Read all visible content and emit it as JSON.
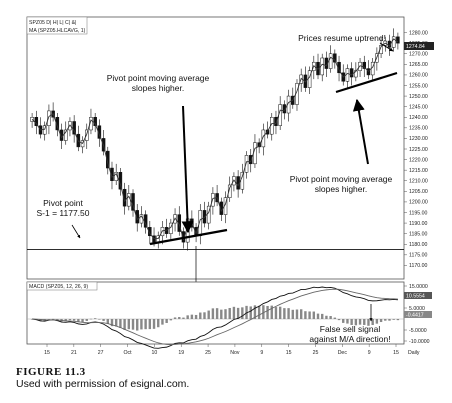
{
  "chart_data": [
    {
      "type": "candlestick",
      "symbol_header": "SPZ05 D| H| L| C| &|",
      "ma_header": "MA (SPZ05.HLCAVG, 1)",
      "ylim": [
        1165,
        1285
      ],
      "y_ticks": [
        "1280.00",
        "1275.00",
        "1270.00",
        "1265.00",
        "1260.00",
        "1255.00",
        "1250.00",
        "1245.00",
        "1240.00",
        "1235.00",
        "1230.00",
        "1225.00",
        "1220.00",
        "1215.00",
        "1210.00",
        "1205.00",
        "1200.00",
        "1195.00",
        "1190.00",
        "1185.00",
        "1180.00",
        "1175.00",
        "1170.00"
      ],
      "last_price_label": "1274.84",
      "pivot_support_level": 1177.5,
      "closes": [
        1240,
        1236,
        1232,
        1236,
        1243,
        1240,
        1234,
        1229,
        1234,
        1238,
        1232,
        1226,
        1229,
        1234,
        1240,
        1236,
        1230,
        1224,
        1216,
        1210,
        1214,
        1206,
        1198,
        1204,
        1196,
        1190,
        1194,
        1188,
        1184,
        1181,
        1184,
        1188,
        1185,
        1190,
        1194,
        1186,
        1181,
        1192,
        1188,
        1184,
        1196,
        1190,
        1198,
        1204,
        1200,
        1194,
        1202,
        1208,
        1212,
        1206,
        1214,
        1222,
        1218,
        1228,
        1226,
        1234,
        1232,
        1240,
        1236,
        1246,
        1242,
        1250,
        1246,
        1256,
        1260,
        1254,
        1262,
        1266,
        1260,
        1268,
        1263,
        1270,
        1266,
        1261,
        1257,
        1263,
        1259,
        1262,
        1266,
        1263,
        1260,
        1266,
        1270,
        1274,
        1276,
        1273,
        1278,
        1275
      ],
      "annotations": [
        {
          "text_lines": [
            "Pivot point moving average",
            "slopes higher."
          ]
        },
        {
          "text_lines": [
            "Prices resume uptrend!"
          ]
        },
        {
          "text_lines": [
            "Pivot point moving average",
            "slopes higher."
          ]
        },
        {
          "text_lines": [
            "Pivot point",
            "S-1 = 1177.50"
          ]
        }
      ]
    },
    {
      "type": "line",
      "header": "MACD (SPZ05, 12, 26, 9)",
      "ylim": [
        -10,
        15
      ],
      "y_ticks": [
        "15.0000",
        "5.0000",
        "-5.0000",
        "-10.0000"
      ],
      "value_labels": [
        "10.5554",
        "-0.4417"
      ],
      "annotation": [
        "False sell signal",
        "against M/A direction!"
      ]
    }
  ],
  "x_axis": {
    "ticks": [
      "15",
      "21",
      "27",
      "Oct",
      "10",
      "19",
      "25",
      "Nov",
      "9",
      "15",
      "25",
      "Dec",
      "9",
      "15"
    ],
    "period_label": "Daily"
  },
  "caption": {
    "figure_number": "FIGURE 11.3",
    "credit": "Used with permission of esignal.com."
  }
}
